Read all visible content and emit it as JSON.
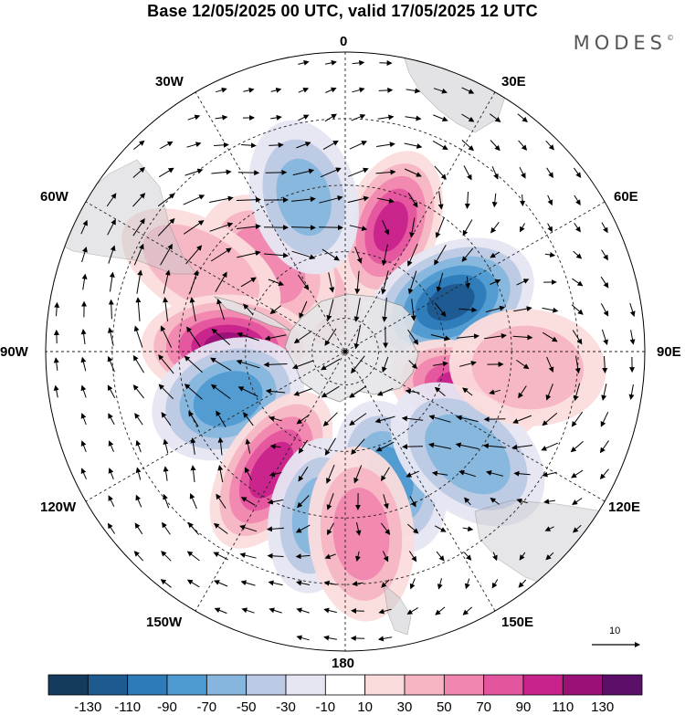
{
  "title": "Base 12/05/2025 00 UTC, valid 17/05/2025 12 UTC",
  "brand": {
    "name": "MODES",
    "mark": "©"
  },
  "longitude_labels": {
    "n0": "0",
    "e30": "30E",
    "e60": "60E",
    "e90": "90E",
    "e120": "120E",
    "e150": "150E",
    "s180": "180",
    "w150": "150W",
    "w120": "120W",
    "w90": "90W",
    "w60": "60W",
    "w30": "30W"
  },
  "reference_vector": {
    "label": "10"
  },
  "colorbar": {
    "colors": [
      "#143a5e",
      "#1d5a90",
      "#2e7bb9",
      "#4f9ad0",
      "#86b6de",
      "#bcc9e4",
      "#e6e6f3",
      "#ffffff",
      "#fbdcdc",
      "#f7b5c3",
      "#f086b0",
      "#e4559f",
      "#c8238c",
      "#991177",
      "#5b0f69"
    ],
    "tick_labels": [
      "-130",
      "-110",
      "-90",
      "-70",
      "-50",
      "-30",
      "-10",
      "10",
      "30",
      "50",
      "70",
      "90",
      "110",
      "130"
    ]
  },
  "field_anomalies": [
    {
      "lat": -50,
      "lon": 20,
      "value": 90
    },
    {
      "lat": -65,
      "lon": -35,
      "value": 60
    },
    {
      "lat": -55,
      "lon": -42,
      "value": 60
    },
    {
      "lat": -40,
      "lon": -60,
      "value": 45
    },
    {
      "lat": -42,
      "lon": -15,
      "value": -50
    },
    {
      "lat": -55,
      "lon": 65,
      "value": -110
    },
    {
      "lat": -52,
      "lon": 108,
      "value": 100
    },
    {
      "lat": -55,
      "lon": -88,
      "value": 110
    },
    {
      "lat": -52,
      "lon": -112,
      "value": -80
    },
    {
      "lat": -48,
      "lon": -148,
      "value": 95
    },
    {
      "lat": -50,
      "lon": 160,
      "value": -70
    },
    {
      "lat": -42,
      "lon": 130,
      "value": -60
    },
    {
      "lat": -40,
      "lon": -170,
      "value": -50
    },
    {
      "lat": -35,
      "lon": 175,
      "value": 55
    },
    {
      "lat": -35,
      "lon": 95,
      "value": 40
    }
  ]
}
